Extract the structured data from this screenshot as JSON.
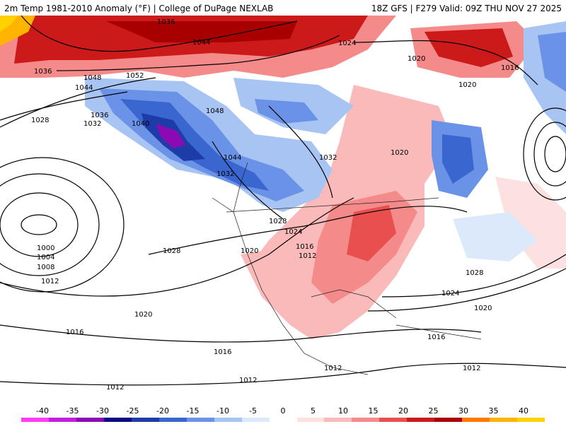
{
  "header": {
    "left": "2m Temp 1981-2010 Anomaly (°F) | College of DuPage NEXLAB",
    "right": "18Z GFS | F279 Valid: 09Z THU NOV 27 2025"
  },
  "legend": {
    "ticks": [
      "-40",
      "-35",
      "-30",
      "-25",
      "-20",
      "-15",
      "-10",
      "-5",
      "0",
      "5",
      "10",
      "15",
      "20",
      "25",
      "30",
      "35",
      "40"
    ],
    "colors": [
      "#ff3cf5",
      "#c31ee0",
      "#8c0ab4",
      "#0a0a82",
      "#1e3ca8",
      "#3a66d0",
      "#6a92e6",
      "#a8c4f2",
      "#dce9fb",
      "#ffffff",
      "#fde1e1",
      "#fbbaba",
      "#f48a8a",
      "#e85050",
      "#cc1a1a",
      "#a80000",
      "#ff7800",
      "#ffb400",
      "#ffd200"
    ]
  },
  "contours": {
    "labels": [
      "1036",
      "1044",
      "1024",
      "1020",
      "1016",
      "1020",
      "1036",
      "1048",
      "1052",
      "1044",
      "1048",
      "1036",
      "1032",
      "1028",
      "1040",
      "1044",
      "1032",
      "1020",
      "1032",
      "1028",
      "1024",
      "1020",
      "1016",
      "1012",
      "1000",
      "1004",
      "1008",
      "1012",
      "1028",
      "1020",
      "1016",
      "1016",
      "1012",
      "1012",
      "1012",
      "1016",
      "1024",
      "1020",
      "1028",
      "1012"
    ]
  },
  "colors": {
    "cold_core": "#1e3ca8",
    "deep_cold": "#8c0ab4",
    "warm_core": "#cc1a1a",
    "contour_line": "#000000"
  }
}
